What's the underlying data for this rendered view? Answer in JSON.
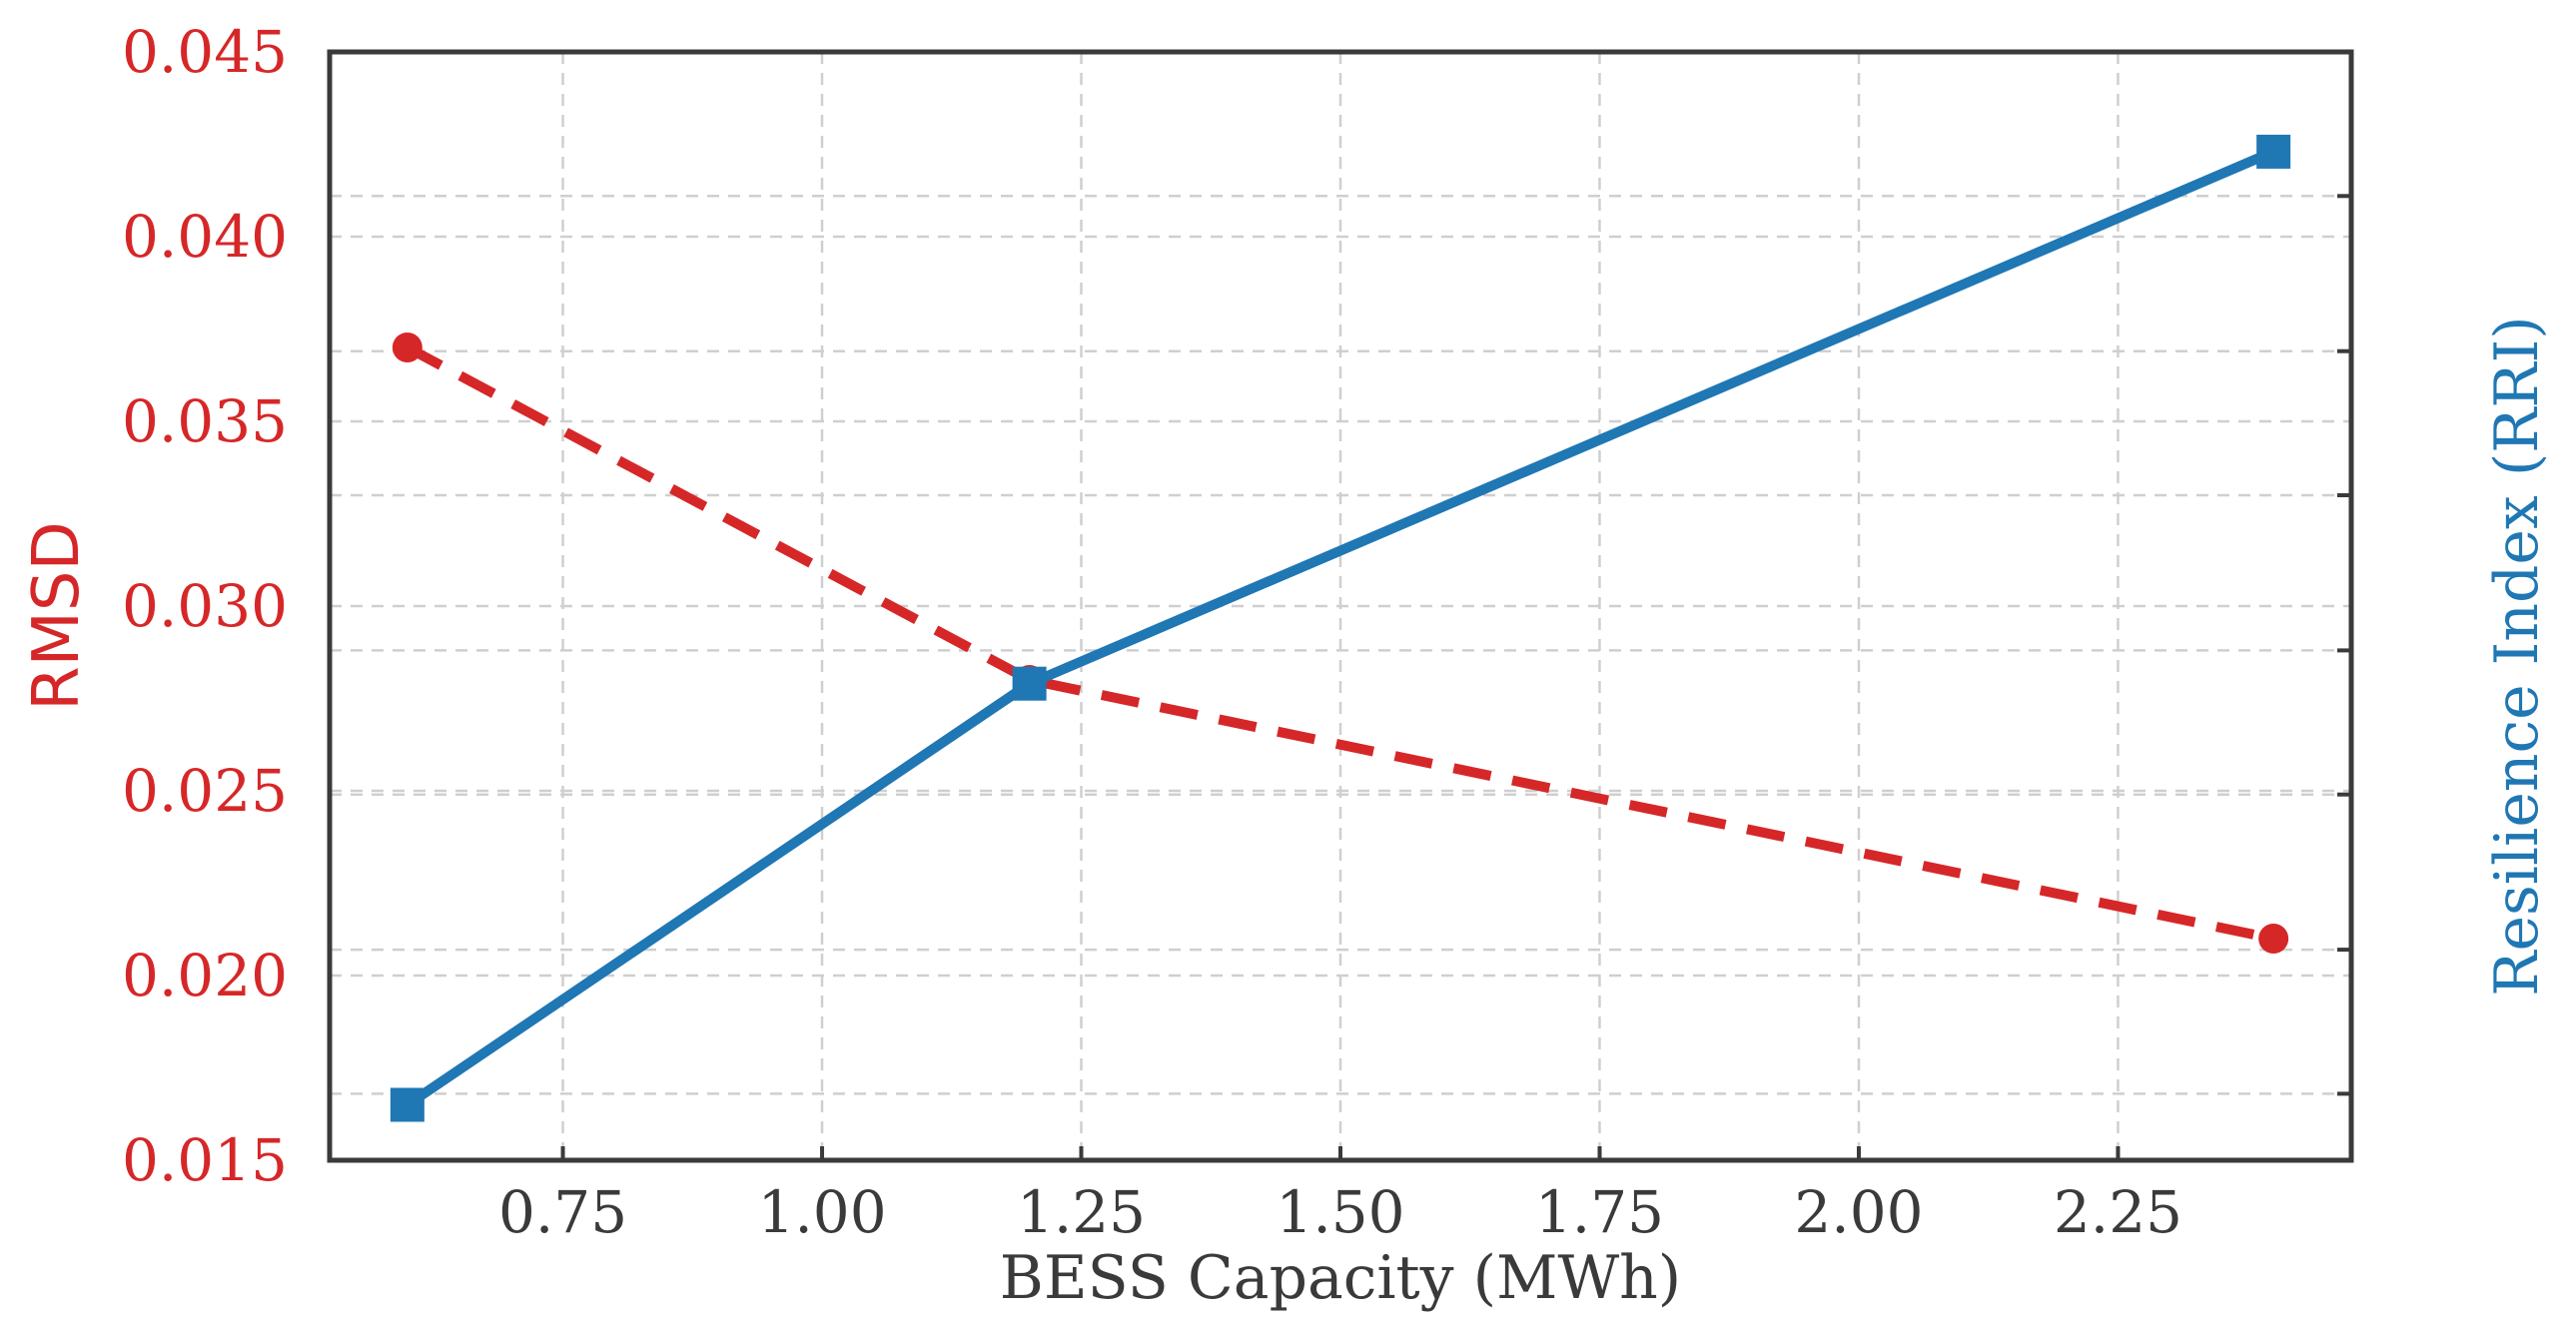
{
  "chart_data": {
    "type": "line",
    "title": "",
    "xlabel": "BESS Capacity (MWh)",
    "ylabel": "RMSD",
    "y2label": "Resilience Index (RRI)",
    "xlim": [
      0.525,
      2.475
    ],
    "ylim": [
      0.015,
      0.045
    ],
    "y2lim": [
      0.0,
      1.0
    ],
    "xticks": [
      0.75,
      1.0,
      1.25,
      1.5,
      1.75,
      2.0,
      2.25
    ],
    "xtick_labels": [
      "0.75",
      "1.00",
      "1.25",
      "1.50",
      "1.75",
      "2.00",
      "2.25"
    ],
    "yticks": [
      0.015,
      0.02,
      0.025,
      0.03,
      0.035,
      0.04,
      0.045
    ],
    "ytick_labels": [
      "0.015",
      "0.020",
      "0.025",
      "0.030",
      "0.035",
      "0.040",
      "0.045"
    ],
    "y2ticks": [
      0.06,
      0.19,
      0.33,
      0.46,
      0.6,
      0.73,
      0.87
    ],
    "grid": true,
    "series": [
      {
        "name": "RMSD",
        "axis": "left",
        "x": [
          0.6,
          1.2,
          2.4
        ],
        "values": [
          0.037,
          0.028,
          0.021
        ],
        "color": "#d62728",
        "linestyle": "dashed",
        "marker": "circle"
      },
      {
        "name": "Resilience Index (RRI)",
        "axis": "right",
        "x": [
          0.6,
          1.2,
          2.4
        ],
        "values": [
          0.05,
          0.43,
          0.91
        ],
        "color": "#1f77b4",
        "linestyle": "solid",
        "marker": "square"
      }
    ]
  }
}
